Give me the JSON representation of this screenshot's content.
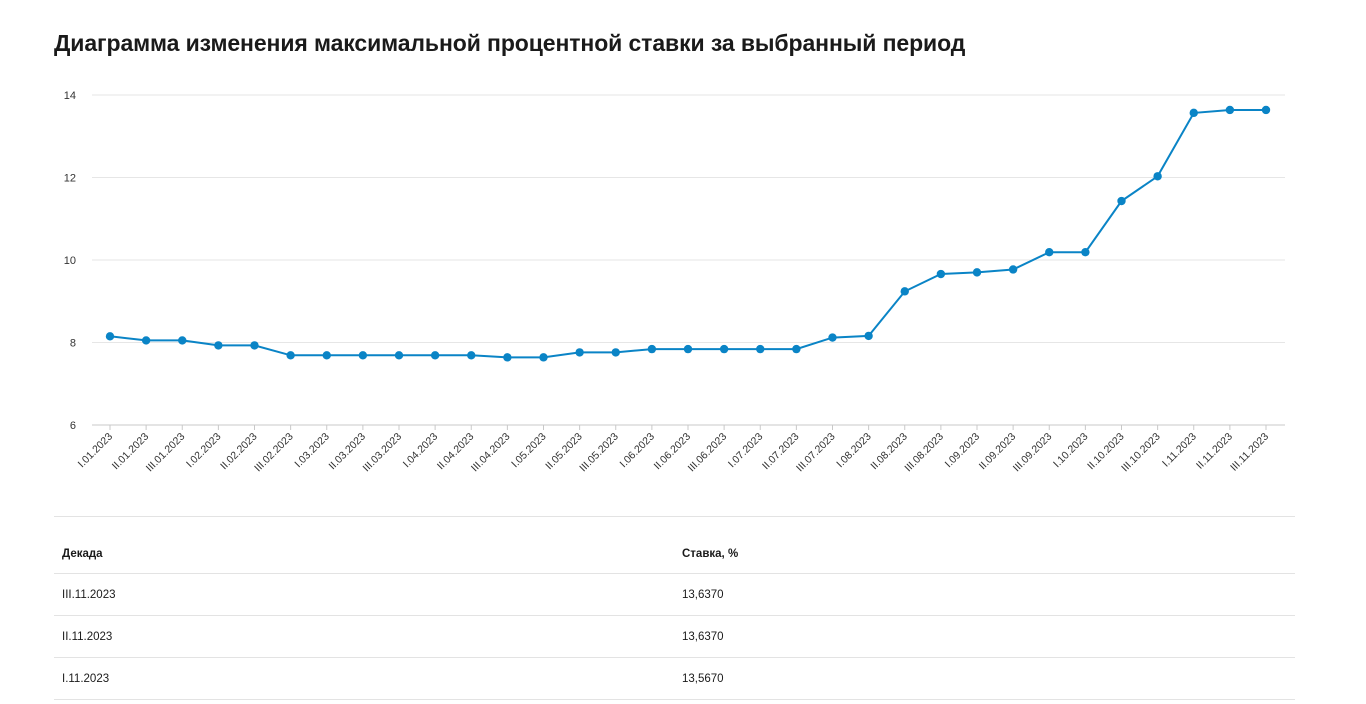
{
  "page": {
    "title": "Диаграмма изменения максимальной процентной ставки за выбранный период"
  },
  "chart_data": {
    "type": "line",
    "title": "",
    "xlabel": "",
    "ylabel": "",
    "ylim": [
      6,
      14
    ],
    "yticks": [
      6,
      8,
      10,
      12,
      14
    ],
    "grid": true,
    "color": "#0a84c6",
    "categories": [
      "I.01.2023",
      "II.01.2023",
      "III.01.2023",
      "I.02.2023",
      "II.02.2023",
      "III.02.2023",
      "I.03.2023",
      "II.03.2023",
      "III.03.2023",
      "I.04.2023",
      "II.04.2023",
      "III.04.2023",
      "I.05.2023",
      "II.05.2023",
      "III.05.2023",
      "I.06.2023",
      "II.06.2023",
      "III.06.2023",
      "I.07.2023",
      "II.07.2023",
      "III.07.2023",
      "I.08.2023",
      "II.08.2023",
      "III.08.2023",
      "I.09.2023",
      "II.09.2023",
      "III.09.2023",
      "I.10.2023",
      "II.10.2023",
      "III.10.2023",
      "I.11.2023",
      "II.11.2023",
      "III.11.2023"
    ],
    "series": [
      {
        "values": [
          8.15,
          8.05,
          8.05,
          7.93,
          7.93,
          7.69,
          7.69,
          7.69,
          7.69,
          7.69,
          7.69,
          7.64,
          7.64,
          7.76,
          7.76,
          7.84,
          7.84,
          7.84,
          7.84,
          7.84,
          8.12,
          8.16,
          9.24,
          9.66,
          9.7,
          9.77,
          10.19,
          10.19,
          11.43,
          12.03,
          13.567,
          13.637,
          13.637
        ]
      }
    ]
  },
  "table": {
    "headers": [
      "Декада",
      "Ставка, %"
    ],
    "rows": [
      [
        "III.11.2023",
        "13,6370"
      ],
      [
        "II.11.2023",
        "13,6370"
      ],
      [
        "I.11.2023",
        "13,5670"
      ]
    ]
  }
}
